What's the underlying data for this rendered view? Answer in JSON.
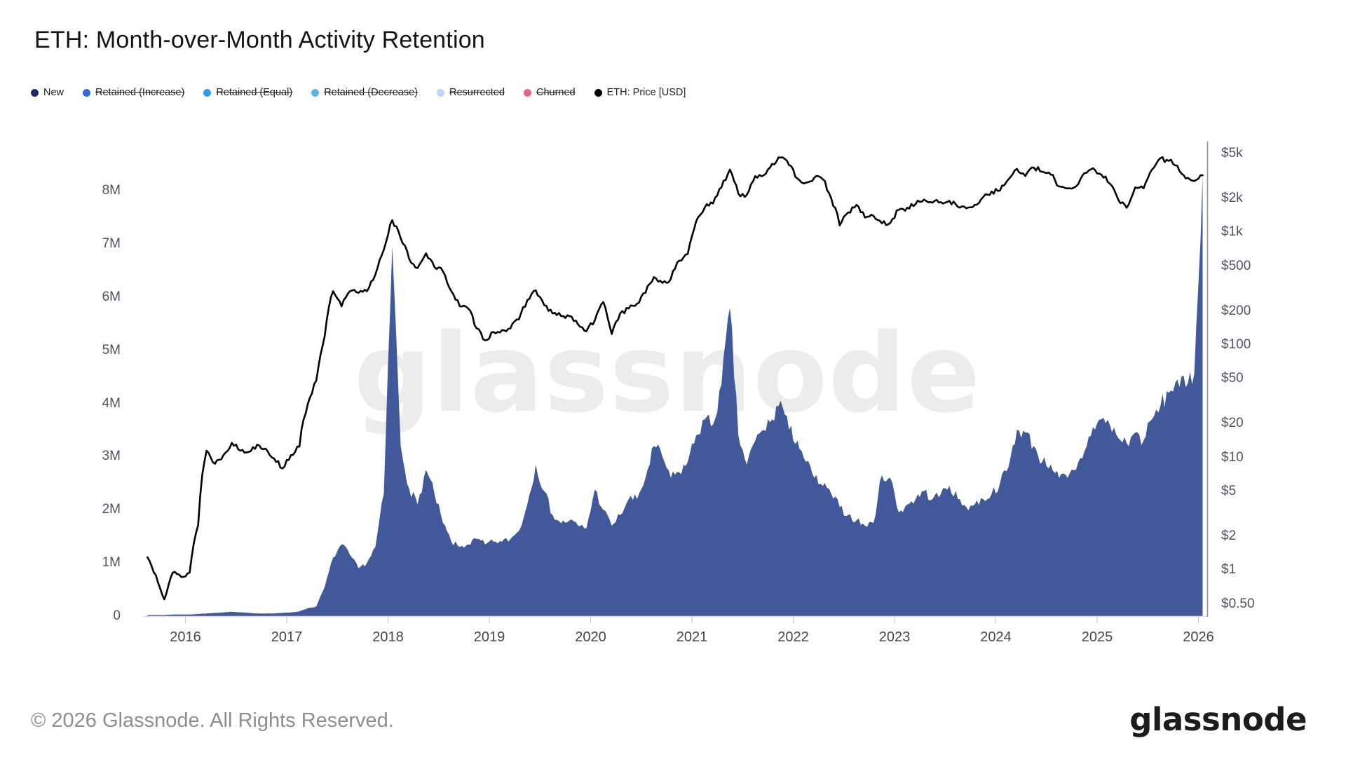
{
  "title": "ETH: Month-over-Month Activity Retention",
  "watermark": "glassnode",
  "footer": {
    "copyright": "© 2026 Glassnode. All Rights Reserved.",
    "brand": "glassnode"
  },
  "legend": [
    {
      "label": "New",
      "color": "#1E2A63",
      "disabled": false
    },
    {
      "label": "Retained (Increase)",
      "color": "#2E6BE0",
      "disabled": true
    },
    {
      "label": "Retained (Equal)",
      "color": "#2B9CE8",
      "disabled": true
    },
    {
      "label": "Retained (Decrease)",
      "color": "#58B6EC",
      "disabled": true
    },
    {
      "label": "Resurrected",
      "color": "#BCD8F5",
      "disabled": true
    },
    {
      "label": "Churned",
      "color": "#F2607F",
      "disabled": true
    },
    {
      "label": "ETH: Price [USD]",
      "color": "#000000",
      "disabled": false
    }
  ],
  "chart_data": {
    "type": "combo-area-line",
    "x": [
      "2015-08",
      "2015-09",
      "2015-10",
      "2015-11",
      "2015-12",
      "2016-01",
      "2016-02",
      "2016-03",
      "2016-04",
      "2016-05",
      "2016-06",
      "2016-07",
      "2016-08",
      "2016-09",
      "2016-10",
      "2016-11",
      "2016-12",
      "2017-01",
      "2017-02",
      "2017-03",
      "2017-04",
      "2017-05",
      "2017-06",
      "2017-07",
      "2017-08",
      "2017-09",
      "2017-10",
      "2017-11",
      "2017-12",
      "2018-01",
      "2018-02",
      "2018-03",
      "2018-04",
      "2018-05",
      "2018-06",
      "2018-07",
      "2018-08",
      "2018-09",
      "2018-10",
      "2018-11",
      "2018-12",
      "2019-01",
      "2019-02",
      "2019-03",
      "2019-04",
      "2019-05",
      "2019-06",
      "2019-07",
      "2019-08",
      "2019-09",
      "2019-10",
      "2019-11",
      "2019-12",
      "2020-01",
      "2020-02",
      "2020-03",
      "2020-04",
      "2020-05",
      "2020-06",
      "2020-07",
      "2020-08",
      "2020-09",
      "2020-10",
      "2020-11",
      "2020-12",
      "2021-01",
      "2021-02",
      "2021-03",
      "2021-04",
      "2021-05",
      "2021-06",
      "2021-07",
      "2021-08",
      "2021-09",
      "2021-10",
      "2021-11",
      "2021-12",
      "2022-01",
      "2022-02",
      "2022-03",
      "2022-04",
      "2022-05",
      "2022-06",
      "2022-07",
      "2022-08",
      "2022-09",
      "2022-10",
      "2022-11",
      "2022-12",
      "2023-01",
      "2023-02",
      "2023-03",
      "2023-04",
      "2023-05",
      "2023-06",
      "2023-07",
      "2023-08",
      "2023-09",
      "2023-10",
      "2023-11",
      "2023-12",
      "2024-01",
      "2024-02",
      "2024-03",
      "2024-04",
      "2024-05",
      "2024-06",
      "2024-07",
      "2024-08",
      "2024-09",
      "2024-10",
      "2024-11",
      "2024-12",
      "2025-01",
      "2025-02",
      "2025-03",
      "2025-04",
      "2025-05",
      "2025-06",
      "2025-07",
      "2025-08",
      "2025-09",
      "2025-10",
      "2025-11",
      "2025-12",
      "2026-01"
    ],
    "series": [
      {
        "name": "New",
        "type": "area",
        "axis": "left",
        "color": "#41599B",
        "unit": "million addresses",
        "values": [
          0.02,
          0.02,
          0.02,
          0.03,
          0.03,
          0.03,
          0.04,
          0.05,
          0.06,
          0.07,
          0.08,
          0.07,
          0.06,
          0.05,
          0.05,
          0.05,
          0.06,
          0.07,
          0.09,
          0.15,
          0.18,
          0.55,
          1.1,
          1.35,
          1.15,
          0.9,
          1.0,
          1.3,
          2.3,
          6.95,
          3.2,
          2.4,
          2.1,
          2.75,
          2.3,
          1.75,
          1.4,
          1.3,
          1.35,
          1.45,
          1.35,
          1.4,
          1.4,
          1.45,
          1.6,
          2.1,
          2.85,
          2.35,
          1.9,
          1.75,
          1.8,
          1.7,
          1.65,
          2.38,
          2.0,
          1.7,
          1.9,
          2.2,
          2.2,
          2.6,
          3.2,
          3.0,
          2.6,
          2.7,
          2.9,
          3.4,
          3.7,
          3.6,
          4.35,
          5.8,
          3.4,
          2.85,
          3.3,
          3.5,
          3.7,
          4.05,
          3.5,
          3.3,
          2.9,
          2.6,
          2.45,
          2.3,
          2.05,
          1.9,
          1.8,
          1.7,
          1.75,
          2.65,
          2.6,
          1.95,
          2.1,
          2.2,
          2.35,
          2.2,
          2.3,
          2.45,
          2.2,
          2.05,
          2.1,
          2.2,
          2.3,
          2.5,
          2.8,
          3.5,
          3.45,
          3.2,
          2.9,
          2.85,
          2.6,
          2.6,
          2.75,
          3.1,
          3.55,
          3.7,
          3.6,
          3.35,
          3.25,
          3.45,
          3.3,
          3.7,
          3.95,
          4.2,
          4.45,
          4.3,
          4.55,
          8.3
        ]
      },
      {
        "name": "ETH: Price [USD]",
        "type": "line",
        "axis": "right",
        "color": "#000000",
        "unit": "USD",
        "values": [
          1.3,
          0.9,
          0.55,
          0.95,
          0.87,
          0.95,
          2.5,
          11.5,
          8.8,
          10.5,
          13.5,
          11.5,
          11.2,
          13.0,
          12.0,
          9.8,
          8.0,
          10.5,
          12.5,
          30,
          48,
          120,
          300,
          220,
          300,
          290,
          300,
          420,
          700,
          1280,
          880,
          580,
          480,
          650,
          490,
          450,
          300,
          220,
          210,
          140,
          110,
          130,
          135,
          140,
          168,
          250,
          305,
          225,
          190,
          180,
          180,
          152,
          132,
          165,
          240,
          125,
          190,
          210,
          232,
          290,
          400,
          355,
          385,
          560,
          640,
          1250,
          1650,
          1800,
          2500,
          3600,
          2200,
          2150,
          3150,
          3200,
          4050,
          4600,
          3950,
          3000,
          2750,
          3050,
          2950,
          2000,
          1150,
          1500,
          1750,
          1350,
          1400,
          1200,
          1210,
          1580,
          1650,
          1780,
          1950,
          1830,
          1850,
          1900,
          1680,
          1630,
          1750,
          2050,
          2300,
          2350,
          2950,
          3650,
          3150,
          3750,
          3450,
          3250,
          2550,
          2450,
          2550,
          3350,
          3700,
          3250,
          2700,
          1950,
          1650,
          2500,
          2450,
          3600,
          4550,
          4300,
          3900,
          3000,
          2850,
          3200
        ]
      }
    ],
    "left_axis": {
      "scale": "linear",
      "tick_values": [
        0,
        1,
        2,
        3,
        4,
        5,
        6,
        7,
        8
      ],
      "tick_labels": [
        "0",
        "1M",
        "2M",
        "3M",
        "4M",
        "5M",
        "6M",
        "7M",
        "8M"
      ]
    },
    "right_axis": {
      "scale": "log",
      "tick_values": [
        5000,
        2000,
        1000,
        500,
        200,
        100,
        50,
        20,
        10,
        5,
        2,
        1,
        0.5
      ],
      "tick_labels": [
        "$5k",
        "$2k",
        "$1k",
        "$500",
        "$200",
        "$100",
        "$50",
        "$20",
        "$10",
        "$5",
        "$2",
        "$1",
        "$0.50"
      ]
    },
    "x_axis": {
      "tick_years": [
        2016,
        2017,
        2018,
        2019,
        2020,
        2021,
        2022,
        2023,
        2024,
        2025,
        2026
      ]
    },
    "grid": false,
    "legend_position": "top-left"
  }
}
